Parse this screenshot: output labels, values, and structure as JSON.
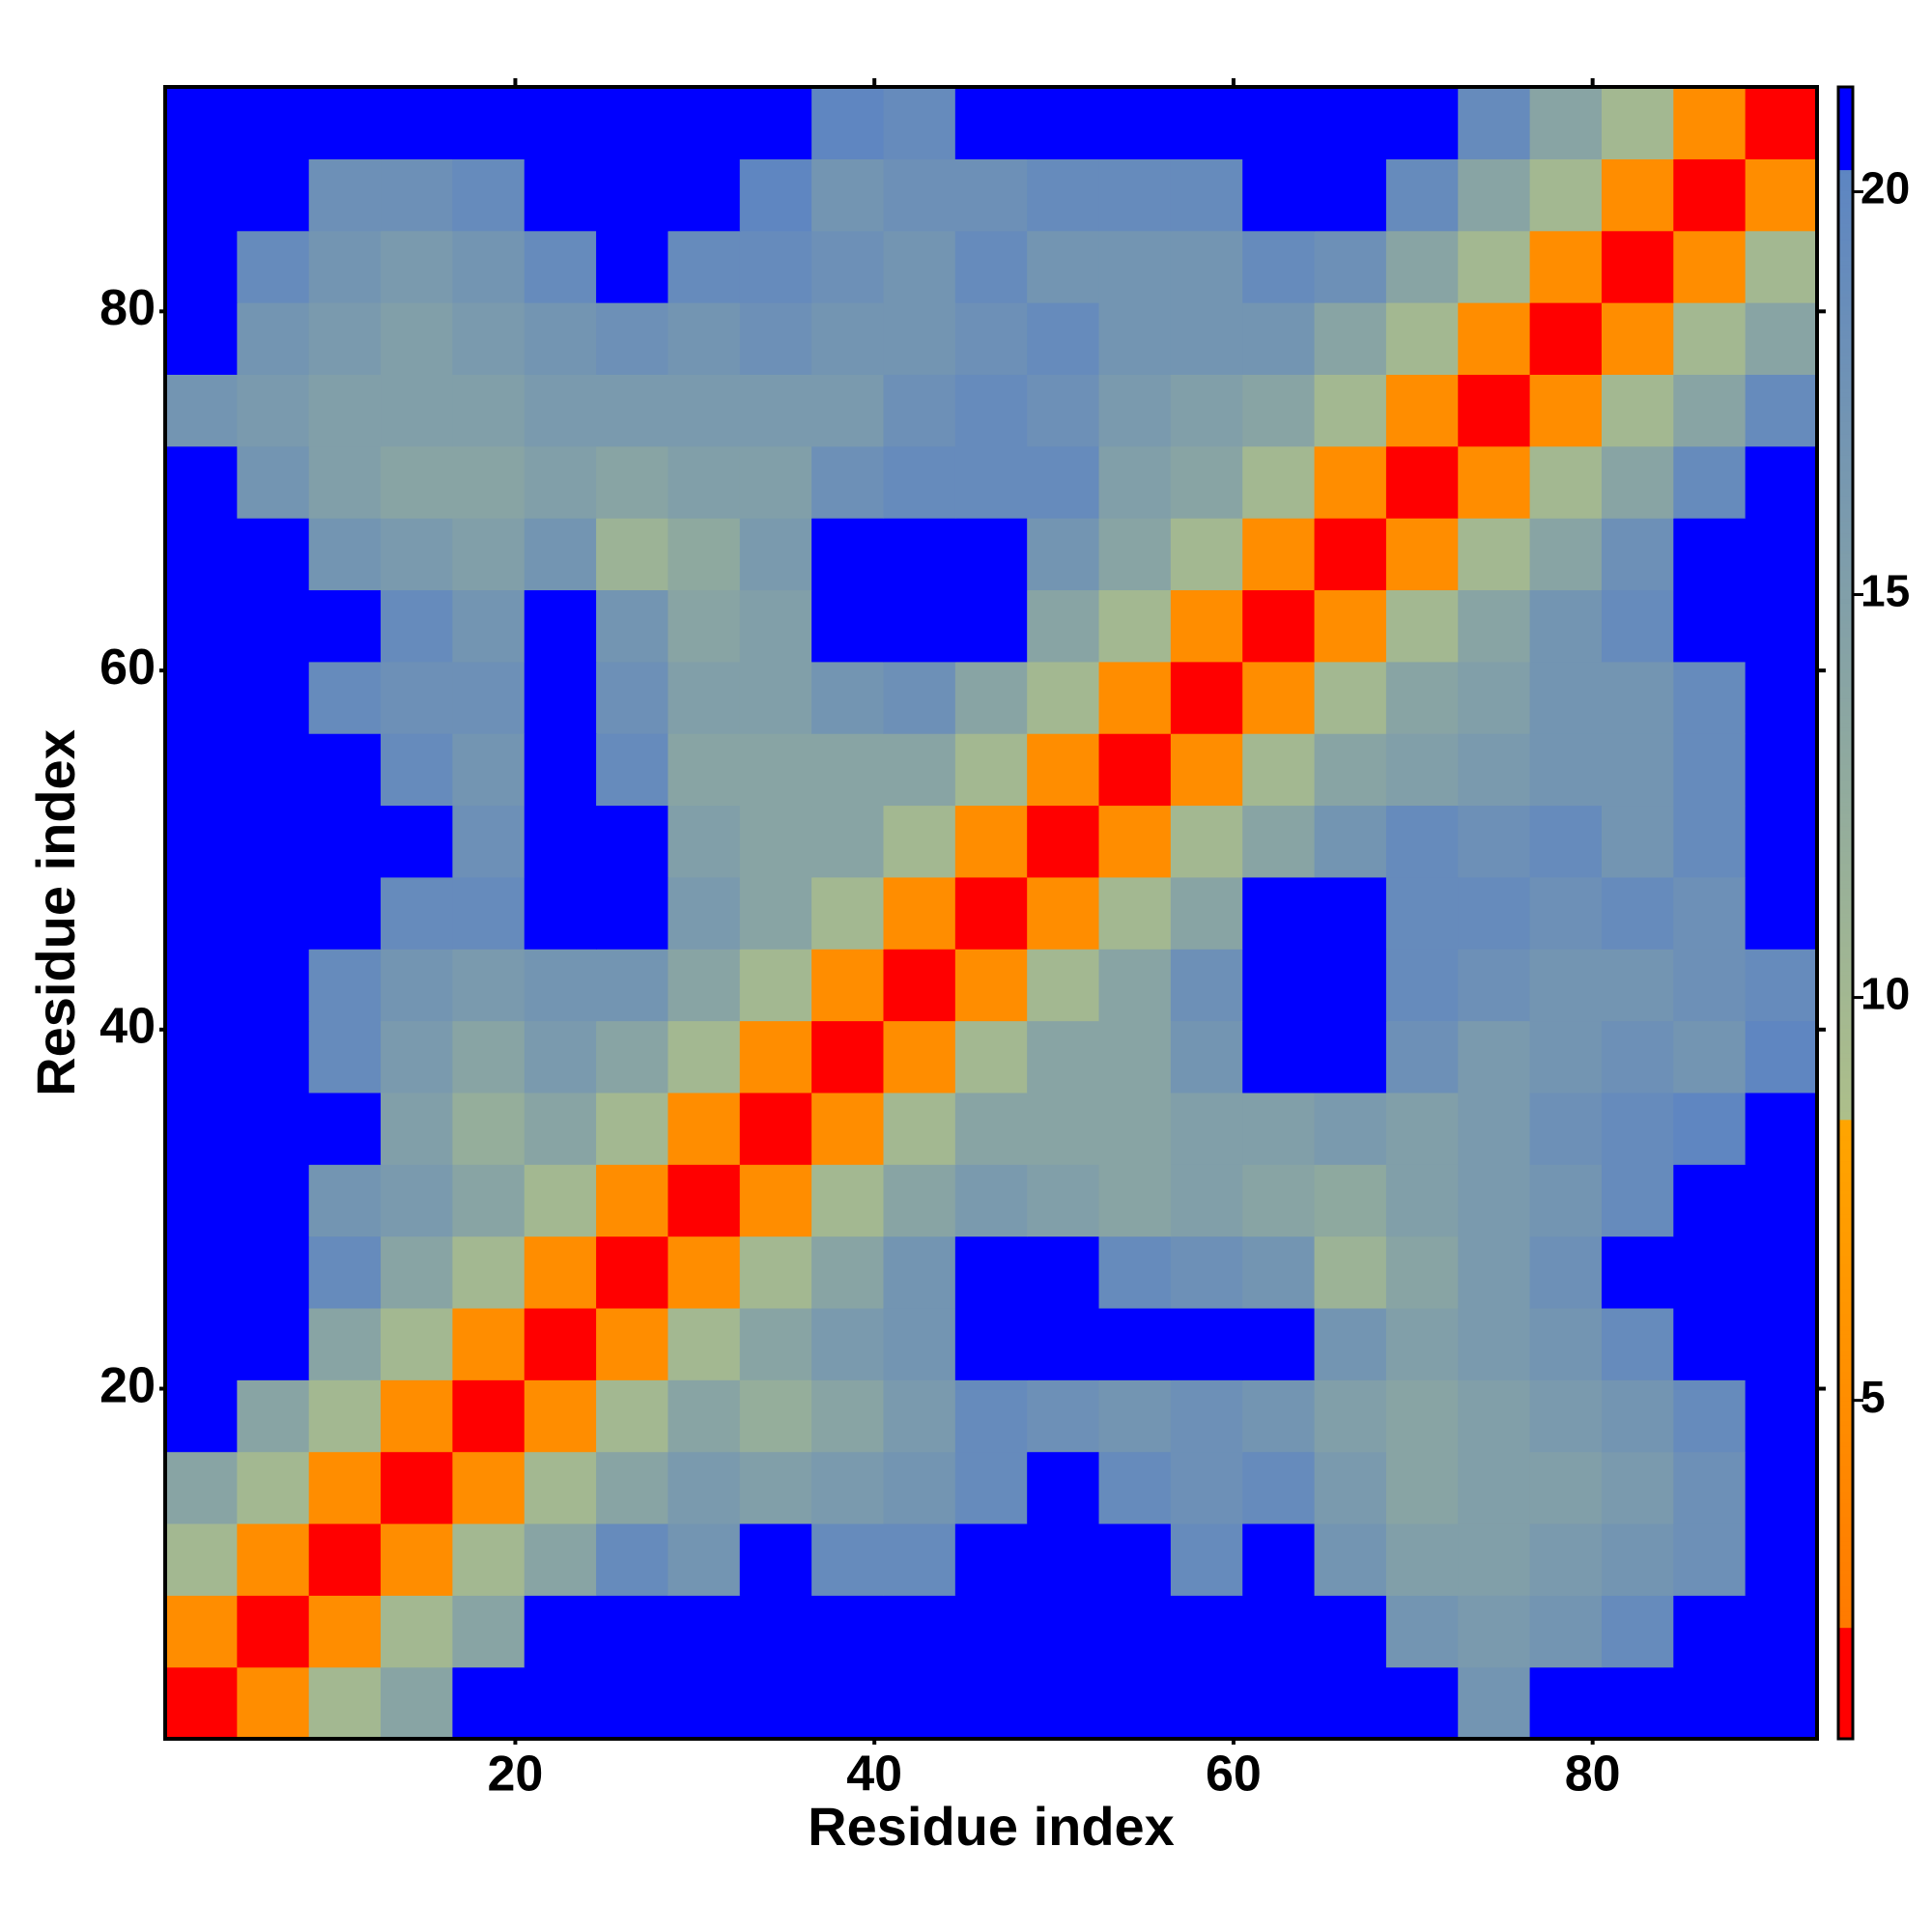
{
  "chart_data": {
    "type": "heatmap",
    "xlabel": "Residue index",
    "ylabel": "Residue index",
    "x": [
      2.5,
      6.5,
      10.5,
      14.5,
      18.5,
      22.5,
      26.5,
      30.5,
      34.5,
      38.5,
      42.5,
      46.5,
      50.5,
      54.5,
      58.5,
      62.5,
      66.5,
      70.5,
      74.5,
      78.5,
      82.5,
      86.5,
      90.5
    ],
    "y": [
      2.5,
      6.5,
      10.5,
      14.5,
      18.5,
      22.5,
      26.5,
      30.5,
      34.5,
      38.5,
      42.5,
      46.5,
      50.5,
      54.5,
      58.5,
      62.5,
      66.5,
      70.5,
      74.5,
      78.5,
      82.5,
      86.5,
      90.5
    ],
    "xlim": [
      0.5,
      92.5
    ],
    "ylim": [
      0.5,
      92.5
    ],
    "xticks": [
      20,
      40,
      60,
      80
    ],
    "yticks": [
      20,
      40,
      60,
      80
    ],
    "clim": [
      0.8,
      21.3
    ],
    "cticks": [
      5,
      10,
      15,
      20
    ],
    "colormap": [
      {
        "value": 0.8,
        "color": "#ff0000"
      },
      {
        "value": 2.2,
        "color": "#ff0000"
      },
      {
        "value": 2.2,
        "color": "#ff7a00"
      },
      {
        "value": 8.5,
        "color": "#ffa500"
      },
      {
        "value": 8.5,
        "color": "#adbf8a"
      },
      {
        "value": 20.3,
        "color": "#5d85c2"
      },
      {
        "value": 20.3,
        "color": "#0000ff"
      },
      {
        "value": 21.3,
        "color": "#0000ff"
      }
    ],
    "values": [
      [
        1.5,
        5,
        10,
        14,
        21,
        21,
        21,
        21,
        21,
        21,
        21,
        21,
        21,
        21,
        21,
        21,
        21,
        21,
        17,
        21,
        21,
        21,
        21
      ],
      [
        5,
        1.5,
        5,
        10,
        14,
        21,
        21,
        21,
        21,
        21,
        21,
        21,
        21,
        21,
        21,
        21,
        21,
        17,
        16,
        17,
        19,
        21,
        21
      ],
      [
        10,
        5,
        1.5,
        5,
        10,
        14,
        19,
        17,
        21,
        19,
        19,
        21,
        21,
        21,
        19,
        21,
        17,
        15,
        15,
        16,
        17,
        18,
        21
      ],
      [
        14,
        10,
        5,
        1.5,
        5,
        10,
        14,
        16,
        15,
        16,
        17,
        19,
        21,
        19,
        18,
        19,
        16,
        14,
        15,
        15,
        16,
        18,
        21
      ],
      [
        21,
        14,
        10,
        5,
        1.5,
        5,
        10,
        14,
        12,
        14,
        16,
        19,
        18,
        17,
        18,
        17,
        15,
        14,
        15,
        16,
        17,
        19,
        21
      ],
      [
        21,
        21,
        14,
        10,
        5,
        1.5,
        5,
        10,
        14,
        16,
        17,
        21,
        21,
        21,
        21,
        21,
        17,
        15,
        16,
        17,
        19,
        21,
        21
      ],
      [
        21,
        21,
        19,
        14,
        10,
        5,
        1.5,
        5,
        10,
        14,
        17,
        21,
        21,
        19,
        18,
        17,
        11,
        14,
        16,
        18,
        21,
        21,
        21
      ],
      [
        21,
        21,
        17,
        16,
        14,
        10,
        5,
        1.5,
        5,
        10,
        14,
        16,
        15,
        14,
        15,
        14,
        13,
        15,
        16,
        17,
        19,
        21,
        21
      ],
      [
        21,
        21,
        21,
        15,
        12,
        14,
        10,
        5,
        1.5,
        5,
        10,
        14,
        14,
        14,
        15,
        15,
        16,
        15,
        16,
        18,
        19,
        20,
        21
      ],
      [
        21,
        21,
        19,
        16,
        14,
        16,
        14,
        10,
        5,
        1.5,
        5,
        10,
        14,
        14,
        17,
        21,
        21,
        18,
        16,
        17,
        18,
        17,
        20
      ],
      [
        21,
        21,
        19,
        17,
        16,
        17,
        17,
        14,
        10,
        5,
        1.5,
        5,
        10,
        14,
        18,
        21,
        21,
        19,
        18,
        17,
        17,
        18,
        19
      ],
      [
        21,
        21,
        21,
        19,
        19,
        21,
        21,
        16,
        14,
        10,
        5,
        1.5,
        5,
        10,
        14,
        21,
        21,
        19,
        19,
        18,
        19,
        18,
        21
      ],
      [
        21,
        21,
        21,
        21,
        18,
        21,
        21,
        15,
        14,
        14,
        10,
        5,
        1.5,
        5,
        10,
        14,
        17,
        19,
        18,
        19,
        17,
        19,
        21
      ],
      [
        21,
        21,
        21,
        19,
        17,
        21,
        19,
        14,
        14,
        14,
        14,
        10,
        5,
        1.5,
        5,
        10,
        14,
        15,
        16,
        17,
        17,
        19,
        21
      ],
      [
        21,
        21,
        19,
        18,
        18,
        21,
        18,
        15,
        15,
        17,
        18,
        14,
        10,
        5,
        1.5,
        5,
        10,
        14,
        15,
        17,
        17,
        19,
        21
      ],
      [
        21,
        21,
        21,
        19,
        17,
        21,
        17,
        14,
        15,
        21,
        21,
        21,
        14,
        10,
        5,
        1.5,
        5,
        10,
        14,
        17,
        19,
        21,
        21
      ],
      [
        21,
        21,
        17,
        16,
        15,
        17,
        11,
        13,
        16,
        21,
        21,
        21,
        17,
        14,
        10,
        5,
        1.5,
        5,
        10,
        14,
        18,
        21,
        21
      ],
      [
        21,
        17,
        15,
        14,
        14,
        15,
        14,
        15,
        15,
        18,
        19,
        19,
        19,
        15,
        14,
        10,
        5,
        1.5,
        5,
        10,
        14,
        19,
        21
      ],
      [
        17,
        16,
        15,
        15,
        15,
        16,
        16,
        16,
        16,
        16,
        18,
        19,
        18,
        16,
        15,
        14,
        10,
        5,
        1.5,
        5,
        10,
        14,
        19
      ],
      [
        21,
        17,
        16,
        15,
        16,
        17,
        18,
        17,
        18,
        17,
        17,
        18,
        19,
        17,
        17,
        17,
        14,
        10,
        5,
        1.5,
        5,
        10,
        14
      ],
      [
        21,
        19,
        17,
        16,
        17,
        19,
        21,
        19,
        19,
        18,
        17,
        19,
        17,
        17,
        17,
        19,
        18,
        14,
        10,
        5,
        1.5,
        5,
        10
      ],
      [
        21,
        21,
        18,
        18,
        19,
        21,
        21,
        21,
        20,
        17,
        18,
        18,
        19,
        19,
        19,
        21,
        21,
        19,
        14,
        10,
        5,
        1.5,
        5
      ],
      [
        21,
        21,
        21,
        21,
        21,
        21,
        21,
        21,
        21,
        20,
        19,
        21,
        21,
        21,
        21,
        21,
        21,
        21,
        19,
        14,
        10,
        5,
        1.5
      ]
    ]
  }
}
